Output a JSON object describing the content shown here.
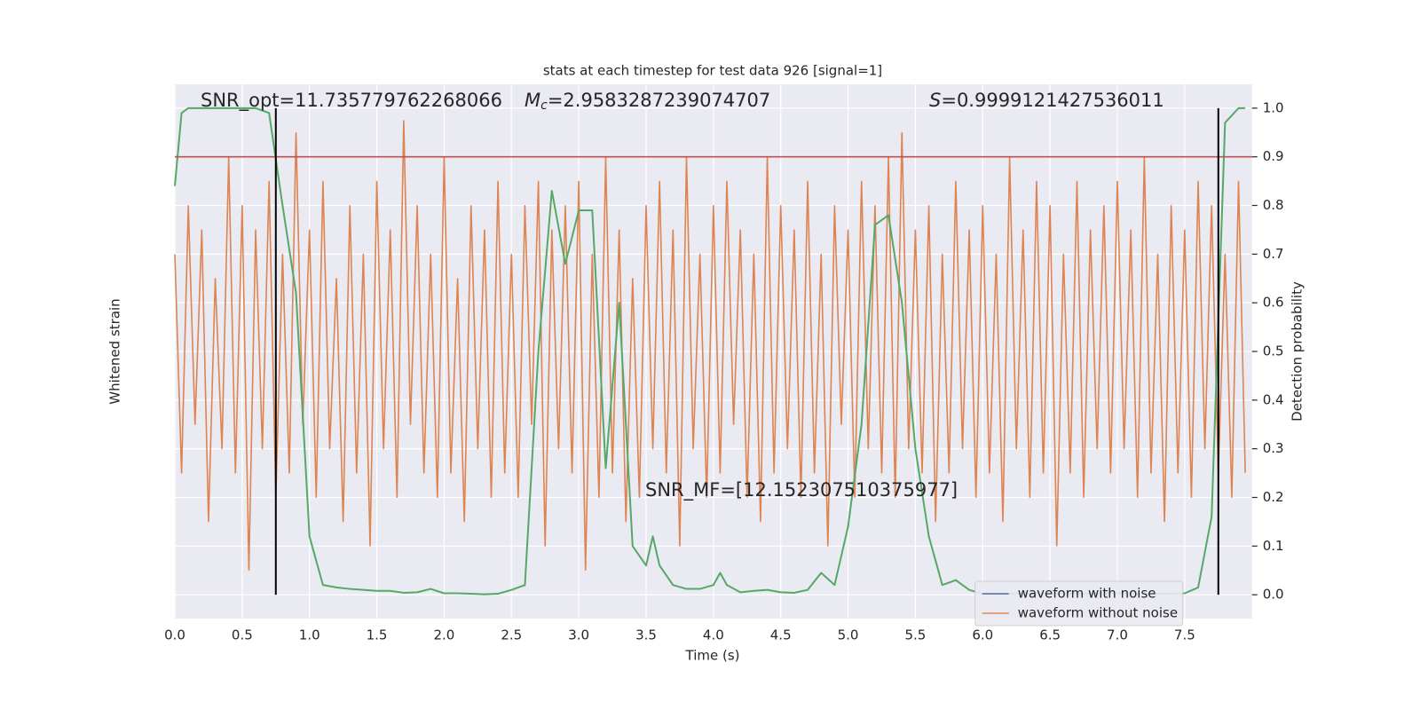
{
  "chart_data": {
    "type": "line",
    "title": "stats at each timestep for test data 926 [signal=1]",
    "xlabel": "Time (s)",
    "ylabel": "Whitened strain",
    "y2label": "Detection probability",
    "xlim": [
      0,
      8
    ],
    "xticks": [
      {
        "value": 0,
        "label": "0.0"
      },
      0.5,
      {
        "value": 1,
        "label": "1.0"
      },
      1.5,
      {
        "value": 2,
        "label": "2.0"
      },
      2.5,
      {
        "value": 3,
        "label": "3.0"
      },
      3.5,
      {
        "value": 4,
        "label": "4.0"
      },
      4.5,
      {
        "value": 5,
        "label": "5.0"
      },
      5.5,
      {
        "value": 6,
        "label": "6.0"
      },
      6.5,
      {
        "value": 7,
        "label": "7.0"
      },
      7.5
    ],
    "ylim": [
      -1.1,
      1.1
    ],
    "y2lim": [
      -0.049,
      1.049
    ],
    "y2ticks": [
      {
        "value": 0,
        "label": "0.0"
      },
      0.1,
      0.2,
      0.3,
      0.4,
      0.5,
      0.6,
      0.7,
      0.8,
      0.9,
      {
        "value": 1,
        "label": "1.0"
      }
    ],
    "grid": true,
    "background": "#eaeaf2",
    "legend": "lower right",
    "threshold": {
      "value": 0.9,
      "color": "#c44e52",
      "axis": "y2"
    },
    "vlines": {
      "values": [
        0.75,
        7.75
      ],
      "color": "#000000"
    },
    "annotations": {
      "snr_opt": "SNR_opt=11.735779762268066",
      "mc": {
        "symbol": "M",
        "sub": "c",
        "text": "=2.9583287239074707"
      },
      "s": {
        "symbol": "S",
        "text": "=0.9999121427536011"
      },
      "snr_mf": "SNR_MF=[12.152307510375977]"
    },
    "series": [
      {
        "name": "waveform with noise",
        "color": "#4c72b0",
        "axis": "y"
      },
      {
        "name": "waveform without noise",
        "color": "#dd8452",
        "axis": "y",
        "x": [
          0,
          0.05,
          0.1,
          0.15,
          0.2,
          0.25,
          0.3,
          0.35,
          0.4,
          0.45,
          0.5,
          0.55,
          0.6,
          0.65,
          0.7,
          0.75,
          0.8,
          0.85,
          0.9,
          0.95,
          1,
          1.05,
          1.1,
          1.15,
          1.2,
          1.25,
          1.3,
          1.35,
          1.4,
          1.45,
          1.5,
          1.55,
          1.6,
          1.65,
          1.7,
          1.75,
          1.8,
          1.85,
          1.9,
          1.95,
          2,
          2.05,
          2.1,
          2.15,
          2.2,
          2.25,
          2.3,
          2.35,
          2.4,
          2.45,
          2.5,
          2.55,
          2.6,
          2.65,
          2.7,
          2.75,
          2.8,
          2.85,
          2.9,
          2.95,
          3,
          3.05,
          3.1,
          3.15,
          3.2,
          3.25,
          3.3,
          3.35,
          3.4,
          3.45,
          3.5,
          3.55,
          3.6,
          3.65,
          3.7,
          3.75,
          3.8,
          3.85,
          3.9,
          3.95,
          4,
          4.05,
          4.1,
          4.15,
          4.2,
          4.25,
          4.3,
          4.35,
          4.4,
          4.45,
          4.5,
          4.55,
          4.6,
          4.65,
          4.7,
          4.75,
          4.8,
          4.85,
          4.9,
          4.95,
          5,
          5.05,
          5.1,
          5.15,
          5.2,
          5.25,
          5.3,
          5.35,
          5.4,
          5.45,
          5.5,
          5.55,
          5.6,
          5.65,
          5.7,
          5.75,
          5.8,
          5.85,
          5.9,
          5.95,
          6,
          6.05,
          6.1,
          6.15,
          6.2,
          6.25,
          6.3,
          6.35,
          6.4,
          6.45,
          6.5,
          6.55,
          6.6,
          6.65,
          6.7,
          6.75,
          6.8,
          6.85,
          6.9,
          6.95,
          7,
          7.05,
          7.1,
          7.15,
          7.2,
          7.25,
          7.3,
          7.35,
          7.4,
          7.45,
          7.5,
          7.55,
          7.6,
          7.65,
          7.7,
          7.75,
          7.8,
          7.85,
          7.9,
          7.95
        ],
        "values": [
          0.4,
          -0.5,
          0.6,
          -0.3,
          0.5,
          -0.7,
          0.3,
          -0.4,
          0.8,
          -0.5,
          0.6,
          -0.9,
          0.5,
          -0.4,
          0.7,
          -0.6,
          0.4,
          -0.5,
          0.9,
          -0.3,
          0.5,
          -0.6,
          0.7,
          -0.4,
          0.3,
          -0.7,
          0.6,
          -0.5,
          0.4,
          -0.8,
          0.7,
          -0.4,
          0.5,
          -0.6,
          0.95,
          -0.3,
          0.6,
          -0.5,
          0.4,
          -0.6,
          0.8,
          -0.5,
          0.3,
          -0.7,
          0.6,
          -0.4,
          0.5,
          -0.6,
          0.7,
          -0.5,
          0.4,
          -0.6,
          0.6,
          -0.3,
          0.7,
          -0.8,
          0.5,
          -0.4,
          0.6,
          -0.5,
          0.7,
          -0.9,
          0.4,
          -0.6,
          0.8,
          -0.5,
          0.5,
          -0.7,
          0.3,
          -0.6,
          0.6,
          -0.4,
          0.7,
          -0.5,
          0.5,
          -0.8,
          0.8,
          -0.4,
          0.4,
          -0.6,
          0.6,
          -0.5,
          0.7,
          -0.3,
          0.5,
          -0.6,
          0.4,
          -0.7,
          0.8,
          -0.5,
          0.6,
          -0.4,
          0.5,
          -0.6,
          0.7,
          -0.5,
          0.4,
          -0.8,
          0.6,
          -0.3,
          0.5,
          -0.6,
          0.7,
          -0.4,
          0.6,
          -0.5,
          0.8,
          -0.6,
          0.9,
          -0.4,
          0.5,
          -0.5,
          0.6,
          -0.7,
          0.4,
          -0.5,
          0.7,
          -0.4,
          0.5,
          -0.6,
          0.6,
          -0.5,
          0.4,
          -0.7,
          0.8,
          -0.4,
          0.5,
          -0.6,
          0.7,
          -0.5,
          0.6,
          -0.8,
          0.4,
          -0.5,
          0.7,
          -0.6,
          0.5,
          -0.4,
          0.6,
          -0.5,
          0.7,
          -0.4,
          0.5,
          -0.6,
          0.8,
          -0.5,
          0.4,
          -0.7,
          0.6,
          -0.5,
          0.5,
          -0.6,
          0.7,
          -0.4,
          0.6,
          -0.5,
          0.4,
          -0.6,
          0.7,
          -0.5
        ]
      },
      {
        "color": "#55a868",
        "axis": "y2",
        "x": [
          0,
          0.05,
          0.1,
          0.2,
          0.3,
          0.4,
          0.5,
          0.6,
          0.7,
          0.8,
          0.9,
          1,
          1.1,
          1.2,
          1.3,
          1.4,
          1.5,
          1.6,
          1.7,
          1.8,
          1.9,
          2,
          2.1,
          2.2,
          2.3,
          2.4,
          2.5,
          2.6,
          2.7,
          2.8,
          2.9,
          3,
          3.1,
          3.2,
          3.3,
          3.4,
          3.5,
          3.55,
          3.6,
          3.7,
          3.8,
          3.9,
          4,
          4.05,
          4.1,
          4.2,
          4.3,
          4.4,
          4.5,
          4.6,
          4.7,
          4.8,
          4.9,
          5,
          5.1,
          5.2,
          5.3,
          5.4,
          5.5,
          5.6,
          5.7,
          5.8,
          5.9,
          6,
          6.2,
          6.4,
          6.6,
          6.8,
          7,
          7.2,
          7.4,
          7.5,
          7.6,
          7.7,
          7.8,
          7.9,
          7.95
        ],
        "values": [
          0.84,
          0.99,
          1.0,
          1.0,
          1.0,
          1.0,
          1.0,
          1.0,
          0.99,
          0.8,
          0.62,
          0.12,
          0.02,
          0.015,
          0.012,
          0.01,
          0.008,
          0.008,
          0.004,
          0.005,
          0.012,
          0.003,
          0.003,
          0.002,
          0.001,
          0.002,
          0.01,
          0.02,
          0.5,
          0.83,
          0.68,
          0.79,
          0.79,
          0.26,
          0.6,
          0.1,
          0.06,
          0.12,
          0.06,
          0.02,
          0.012,
          0.012,
          0.02,
          0.045,
          0.02,
          0.005,
          0.008,
          0.01,
          0.005,
          0.004,
          0.01,
          0.045,
          0.02,
          0.14,
          0.35,
          0.76,
          0.78,
          0.6,
          0.3,
          0.12,
          0.02,
          0.03,
          0.01,
          0.002,
          0.002,
          0.003,
          0.002,
          0.002,
          0.003,
          0.002,
          0.002,
          0.003,
          0.015,
          0.16,
          0.97,
          1.0,
          1.0
        ]
      }
    ]
  }
}
